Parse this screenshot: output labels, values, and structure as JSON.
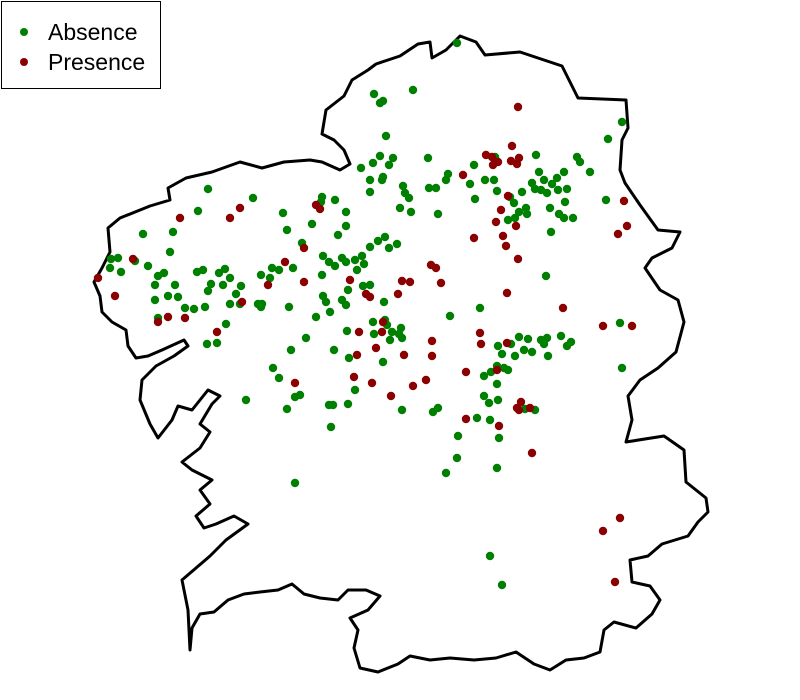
{
  "legend": {
    "absence_label": "Absence",
    "presence_label": "Presence",
    "absence_color": "#008000",
    "presence_color": "#8b0000"
  },
  "chart_data": {
    "type": "scatter",
    "map_region": "Galicia outline",
    "grid": false,
    "legend_position": "top-left",
    "series": [
      {
        "name": "Absence",
        "color": "#008000",
        "points": [
          [
            457,
            43
          ],
          [
            413,
            90
          ],
          [
            374,
            94
          ],
          [
            380,
            103
          ],
          [
            383,
            101
          ],
          [
            622,
            122
          ],
          [
            608,
            139
          ],
          [
            386,
            136
          ],
          [
            380,
            156
          ],
          [
            393,
            158
          ],
          [
            373,
            163
          ],
          [
            389,
            165
          ],
          [
            428,
            158
          ],
          [
            429,
            188
          ],
          [
            436,
            188
          ],
          [
            446,
            180
          ],
          [
            448,
            174
          ],
          [
            474,
            165
          ],
          [
            495,
            157
          ],
          [
            536,
            155
          ],
          [
            577,
            157
          ],
          [
            580,
            162
          ],
          [
            590,
            172
          ],
          [
            564,
            172
          ],
          [
            557,
            178
          ],
          [
            539,
            172
          ],
          [
            544,
            180
          ],
          [
            541,
            190
          ],
          [
            552,
            184
          ],
          [
            558,
            190
          ],
          [
            567,
            189
          ],
          [
            547,
            193
          ],
          [
            535,
            189
          ],
          [
            532,
            183
          ],
          [
            522,
            192
          ],
          [
            510,
            197
          ],
          [
            514,
            203
          ],
          [
            519,
            212
          ],
          [
            515,
            218
          ],
          [
            508,
            220
          ],
          [
            526,
            208
          ],
          [
            527,
            214
          ],
          [
            550,
            208
          ],
          [
            559,
            214
          ],
          [
            565,
            202
          ],
          [
            564,
            218
          ],
          [
            573,
            218
          ],
          [
            551,
            232
          ],
          [
            606,
            200
          ],
          [
            475,
            199
          ],
          [
            494,
            180
          ],
          [
            497,
            191
          ],
          [
            485,
            180
          ],
          [
            470,
            184
          ],
          [
            361,
            168
          ],
          [
            370,
            180
          ],
          [
            382,
            180
          ],
          [
            383,
            177
          ],
          [
            370,
            192
          ],
          [
            403,
            186
          ],
          [
            405,
            193
          ],
          [
            409,
            198
          ],
          [
            400,
            208
          ],
          [
            411,
            212
          ],
          [
            438,
            214
          ],
          [
            322,
            197
          ],
          [
            321,
            202
          ],
          [
            335,
            200
          ],
          [
            312,
            224
          ],
          [
            346,
            212
          ],
          [
            283,
            213
          ],
          [
            208,
            189
          ],
          [
            198,
            211
          ],
          [
            253,
            198
          ],
          [
            346,
            226
          ],
          [
            378,
            241
          ],
          [
            385,
            237
          ],
          [
            389,
            248
          ],
          [
            397,
            244
          ],
          [
            370,
            247
          ],
          [
            362,
            256
          ],
          [
            364,
            264
          ],
          [
            357,
            270
          ],
          [
            338,
            235
          ],
          [
            342,
            258
          ],
          [
            335,
            266
          ],
          [
            323,
            256
          ],
          [
            302,
            243
          ],
          [
            287,
            230
          ],
          [
            110,
            268
          ],
          [
            118,
            258
          ],
          [
            121,
            272
          ],
          [
            111,
            259
          ],
          [
            135,
            261
          ],
          [
            143,
            234
          ],
          [
            170,
            252
          ],
          [
            173,
            232
          ],
          [
            148,
            266
          ],
          [
            164,
            273
          ],
          [
            158,
            276
          ],
          [
            155,
            285
          ],
          [
            155,
            300
          ],
          [
            158,
            318
          ],
          [
            175,
            285
          ],
          [
            168,
            296
          ],
          [
            178,
            297
          ],
          [
            185,
            308
          ],
          [
            194,
            309
          ],
          [
            205,
            307
          ],
          [
            208,
            291
          ],
          [
            197,
            272
          ],
          [
            203,
            270
          ],
          [
            211,
            284
          ],
          [
            223,
            285
          ],
          [
            225,
            269
          ],
          [
            230,
            278
          ],
          [
            236,
            294
          ],
          [
            241,
            286
          ],
          [
            261,
            275
          ],
          [
            272,
            268
          ],
          [
            270,
            278
          ],
          [
            279,
            270
          ],
          [
            230,
            304
          ],
          [
            240,
            304
          ],
          [
            258,
            304
          ],
          [
            261,
            307
          ],
          [
            262,
            304
          ],
          [
            293,
            268
          ],
          [
            322,
            275
          ],
          [
            329,
            262
          ],
          [
            346,
            262
          ],
          [
            355,
            260
          ],
          [
            348,
            290
          ],
          [
            346,
            305
          ],
          [
            323,
            296
          ],
          [
            326,
            302
          ],
          [
            330,
            312
          ],
          [
            342,
            300
          ],
          [
            363,
            286
          ],
          [
            370,
            285
          ],
          [
            384,
            302
          ],
          [
            373,
            322
          ],
          [
            374,
            334
          ],
          [
            385,
            320
          ],
          [
            387,
            325
          ],
          [
            399,
            334
          ],
          [
            401,
            328
          ],
          [
            392,
            332
          ],
          [
            402,
            338
          ],
          [
            390,
            340
          ],
          [
            289,
            307
          ],
          [
            316,
            317
          ],
          [
            291,
            350
          ],
          [
            306,
            338
          ],
          [
            334,
            350
          ],
          [
            347,
            331
          ],
          [
            349,
            358
          ],
          [
            273,
            368
          ],
          [
            279,
            378
          ],
          [
            295,
            397
          ],
          [
            300,
            395
          ],
          [
            287,
            409
          ],
          [
            246,
            400
          ],
          [
            329,
            405
          ],
          [
            333,
            405
          ],
          [
            348,
            404
          ],
          [
            355,
            390
          ],
          [
            331,
            427
          ],
          [
            383,
            362
          ],
          [
            402,
            410
          ],
          [
            433,
            412
          ],
          [
            438,
            408
          ],
          [
            450,
            316
          ],
          [
            480,
            308
          ],
          [
            498,
            346
          ],
          [
            502,
            354
          ],
          [
            511,
            344
          ],
          [
            519,
            337
          ],
          [
            528,
            339
          ],
          [
            524,
            350
          ],
          [
            532,
            352
          ],
          [
            541,
            340
          ],
          [
            544,
            344
          ],
          [
            547,
            338
          ],
          [
            548,
            356
          ],
          [
            561,
            336
          ],
          [
            567,
            346
          ],
          [
            571,
            342
          ],
          [
            515,
            356
          ],
          [
            504,
            368
          ],
          [
            508,
            370
          ],
          [
            497,
            366
          ],
          [
            491,
            372
          ],
          [
            484,
            376
          ],
          [
            497,
            384
          ],
          [
            484,
            396
          ],
          [
            489,
            403
          ],
          [
            498,
            400
          ],
          [
            477,
            418
          ],
          [
            490,
            420
          ],
          [
            458,
            436
          ],
          [
            499,
            438
          ],
          [
            457,
            458
          ],
          [
            446,
            473
          ],
          [
            497,
            468
          ],
          [
            525,
            409
          ],
          [
            535,
            410
          ],
          [
            546,
            276
          ],
          [
            620,
            323
          ],
          [
            622,
            368
          ],
          [
            490,
            556
          ],
          [
            502,
            585
          ],
          [
            295,
            483
          ],
          [
            217,
            343
          ],
          [
            207,
            344
          ],
          [
            226,
            324
          ],
          [
            219,
            273
          ]
        ]
      },
      {
        "name": "Presence",
        "color": "#8b0000",
        "points": [
          [
            518,
            107
          ],
          [
            486,
            155
          ],
          [
            492,
            157
          ],
          [
            498,
            162
          ],
          [
            512,
            146
          ],
          [
            511,
            161
          ],
          [
            517,
            164
          ],
          [
            519,
            158
          ],
          [
            508,
            196
          ],
          [
            493,
            165
          ],
          [
            463,
            175
          ],
          [
            501,
            210
          ],
          [
            496,
            222
          ],
          [
            503,
            236
          ],
          [
            506,
            246
          ],
          [
            516,
            226
          ],
          [
            474,
            238
          ],
          [
            518,
            259
          ],
          [
            624,
            201
          ],
          [
            618,
            234
          ],
          [
            627,
            226
          ],
          [
            240,
            208
          ],
          [
            230,
            218
          ],
          [
            180,
            218
          ],
          [
            316,
            205
          ],
          [
            320,
            209
          ],
          [
            304,
            248
          ],
          [
            285,
            262
          ],
          [
            431,
            265
          ],
          [
            436,
            268
          ],
          [
            441,
            283
          ],
          [
            402,
            281
          ],
          [
            410,
            282
          ],
          [
            398,
            294
          ],
          [
            350,
            280
          ],
          [
            366,
            294
          ],
          [
            370,
            297
          ],
          [
            304,
            282
          ],
          [
            268,
            285
          ],
          [
            133,
            259
          ],
          [
            98,
            278
          ],
          [
            115,
            296
          ],
          [
            158,
            322
          ],
          [
            168,
            317
          ],
          [
            185,
            318
          ],
          [
            242,
            302
          ],
          [
            217,
            332
          ],
          [
            359,
            332
          ],
          [
            383,
            322
          ],
          [
            382,
            332
          ],
          [
            376,
            348
          ],
          [
            357,
            355
          ],
          [
            354,
            377
          ],
          [
            372,
            383
          ],
          [
            391,
            396
          ],
          [
            404,
            355
          ],
          [
            413,
            386
          ],
          [
            432,
            341
          ],
          [
            432,
            356
          ],
          [
            426,
            380
          ],
          [
            466,
            372
          ],
          [
            466,
            419
          ],
          [
            480,
            333
          ],
          [
            481,
            344
          ],
          [
            507,
            293
          ],
          [
            507,
            343
          ],
          [
            497,
            370
          ],
          [
            499,
            426
          ],
          [
            517,
            408
          ],
          [
            521,
            402
          ],
          [
            530,
            408
          ],
          [
            519,
            410
          ],
          [
            532,
            453
          ],
          [
            563,
            308
          ],
          [
            603,
            326
          ],
          [
            632,
            326
          ],
          [
            603,
            531
          ],
          [
            620,
            518
          ],
          [
            615,
            582
          ],
          [
            295,
            383
          ]
        ]
      }
    ]
  }
}
